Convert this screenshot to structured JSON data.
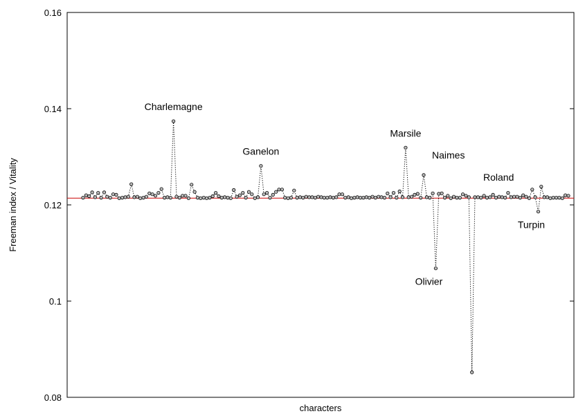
{
  "chart_data": {
    "type": "line",
    "title": "",
    "xlabel": "characters",
    "ylabel": "Freeman index / Vitality",
    "ylim": [
      0.08,
      0.16
    ],
    "y_ticks": [
      {
        "value": 0.08,
        "label": "0.08"
      },
      {
        "value": 0.1,
        "label": "0.1"
      },
      {
        "value": 0.12,
        "label": "0.12"
      },
      {
        "value": 0.14,
        "label": "0.14"
      },
      {
        "value": 0.16,
        "label": "0.16"
      }
    ],
    "x_ticks": [],
    "grid": false,
    "baseline": {
      "value": 0.1214,
      "color": "#cc0000"
    },
    "series_style": {
      "line": "dotted",
      "color": "#000000",
      "marker": "open-circle",
      "marker_fill": "#bbbbbb"
    },
    "series": [
      {
        "values": [
          0.1215,
          0.122,
          0.1218,
          0.1226,
          0.1216,
          0.1225,
          0.1215,
          0.1226,
          0.1217,
          0.1215,
          0.1222,
          0.1221,
          0.1214,
          0.1215,
          0.1216,
          0.1217,
          0.1243,
          0.1216,
          0.1217,
          0.1214,
          0.1215,
          0.1217,
          0.1224,
          0.1222,
          0.1219,
          0.1225,
          0.1233,
          0.1215,
          0.1216,
          0.1215,
          0.1374,
          0.1217,
          0.1215,
          0.1219,
          0.1219,
          0.1214,
          0.1242,
          0.1227,
          0.1215,
          0.1214,
          0.1215,
          0.1214,
          0.1215,
          0.1218,
          0.1225,
          0.1218,
          0.1215,
          0.1216,
          0.1215,
          0.1214,
          0.1231,
          0.1217,
          0.122,
          0.1225,
          0.1215,
          0.1227,
          0.1222,
          0.1214,
          0.1216,
          0.1281,
          0.1222,
          0.1225,
          0.1215,
          0.1221,
          0.1227,
          0.1232,
          0.1232,
          0.1215,
          0.1214,
          0.1215,
          0.123,
          0.1215,
          0.1216,
          0.1215,
          0.1217,
          0.1216,
          0.1216,
          0.1215,
          0.1217,
          0.1216,
          0.1215,
          0.1215,
          0.1216,
          0.1215,
          0.1216,
          0.1222,
          0.1222,
          0.1215,
          0.1216,
          0.1214,
          0.1215,
          0.1216,
          0.1215,
          0.1215,
          0.1216,
          0.1215,
          0.1217,
          0.1215,
          0.1217,
          0.1216,
          0.1215,
          0.1224,
          0.1216,
          0.1225,
          0.1215,
          0.1228,
          0.1216,
          0.1319,
          0.1216,
          0.1217,
          0.1221,
          0.1223,
          0.1215,
          0.1262,
          0.1216,
          0.1215,
          0.1224,
          0.1068,
          0.1223,
          0.1224,
          0.1215,
          0.1219,
          0.1214,
          0.1217,
          0.1215,
          0.1215,
          0.1222,
          0.1219,
          0.1216,
          0.0852,
          0.1216,
          0.1216,
          0.1215,
          0.1219,
          0.1215,
          0.1216,
          0.1221,
          0.1215,
          0.1217,
          0.1216,
          0.1215,
          0.1225,
          0.1216,
          0.1217,
          0.1217,
          0.1215,
          0.122,
          0.1217,
          0.1214,
          0.1232,
          0.1216,
          0.1186,
          0.1238,
          0.1216,
          0.1216,
          0.1214,
          0.1215,
          0.1215,
          0.1215,
          0.1214,
          0.122,
          0.1219
        ]
      }
    ],
    "annotations": [
      {
        "text": "Charlemagne",
        "index": 30,
        "position": "above"
      },
      {
        "text": "Ganelon",
        "index": 59,
        "position": "above"
      },
      {
        "text": "Marsile",
        "index": 107,
        "position": "above"
      },
      {
        "text": "Naimes",
        "index": 113,
        "position": "above-right"
      },
      {
        "text": "Olivier",
        "index": 117,
        "position": "below"
      },
      {
        "text": "Roland",
        "index": 130,
        "position": "above-right"
      },
      {
        "text": "Turpin",
        "index": 151,
        "position": "below"
      }
    ]
  }
}
